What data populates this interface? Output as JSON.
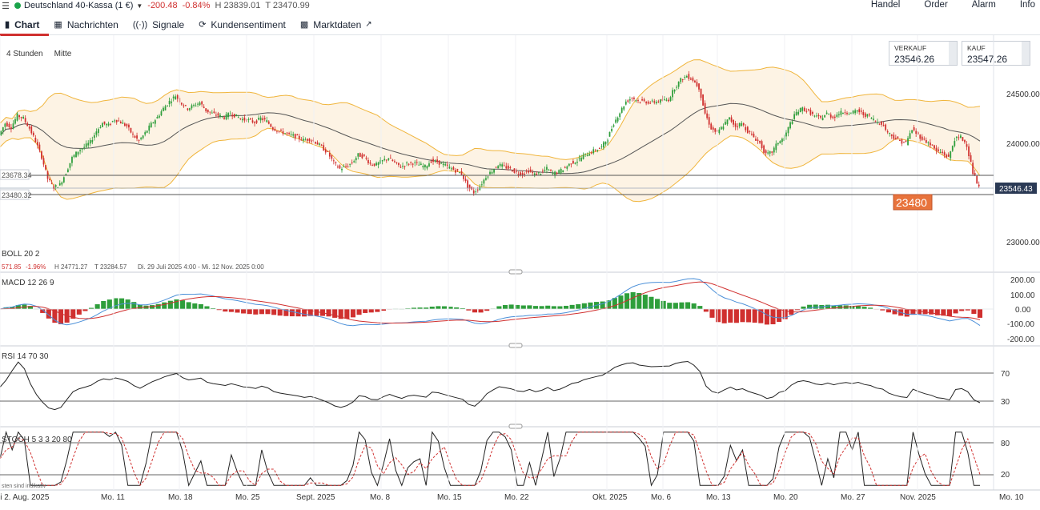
{
  "header": {
    "instrument": "Deutschland 40-Kassa (1 €)",
    "change": "-200.48",
    "change_pct": "-0.84%",
    "high": "H 23839.01",
    "low": "T 23470.99",
    "menu": [
      "Handel",
      "Order",
      "Alarm",
      "Info"
    ]
  },
  "tabs": [
    {
      "label": "Chart",
      "icon": "bar-chart-icon"
    },
    {
      "label": "Nachrichten",
      "icon": "newspaper-icon"
    },
    {
      "label": "Signale",
      "icon": "signal-icon"
    },
    {
      "label": "Kundensentiment",
      "icon": "sentiment-icon"
    },
    {
      "label": "Marktdaten",
      "icon": "external-link-icon"
    }
  ],
  "options": {
    "interval": "4 Stunden",
    "price_mode": "Mitte"
  },
  "quote": {
    "sell_label": "VERKAUF",
    "sell_value": "23546.26",
    "buy_label": "KAUF",
    "buy_value": "23547.26"
  },
  "price_panel": {
    "y_ticks": [
      "24500.00",
      "24000.00",
      "23000.00"
    ],
    "last_price": "23546.43",
    "line_labels": [
      "23678.34",
      "23480.32"
    ],
    "alert_level": "23480",
    "indicator": "BOLL  20  2",
    "summary": {
      "first": "571.85",
      "pct": "-1.96%",
      "high": "H 24771.27",
      "low": "T 23284.57",
      "range": "Di. 29 Juli 2025 4:00 - Mi. 12 Nov. 2025 0:00"
    }
  },
  "macd_panel": {
    "title": "MACD  12  26  9",
    "y_ticks": [
      "200.00",
      "100.00",
      "0.00",
      "-100.00",
      "-200.00"
    ]
  },
  "rsi_panel": {
    "title": "RSI  14  70  30",
    "y_ticks": [
      "70",
      "30"
    ]
  },
  "stoch_panel": {
    "title": "STOCH  5  3  3  20  80",
    "y_ticks": [
      "80",
      "20"
    ],
    "footnote": "sten sind indikativ"
  },
  "x_axis": [
    "li 2. Aug. 2025",
    "Mo. 11",
    "Mo. 18",
    "Mo. 25",
    "Sept. 2025",
    "Mo. 8",
    "Mo. 15",
    "Mo. 22",
    "Okt. 2025",
    "Mo. 6",
    "Mo. 13",
    "Mo. 20",
    "Mo. 27",
    "Nov. 2025",
    "Mo. 10"
  ],
  "chart_data": {
    "type": "line",
    "title": "",
    "xlabel": "",
    "ylabel": "",
    "candlestick_close": [
      24080,
      24200,
      24160,
      24280,
      24250,
      24150,
      24020,
      23860,
      23640,
      23550,
      23580,
      23700,
      23850,
      23920,
      23960,
      24010,
      24120,
      24200,
      24180,
      24240,
      24210,
      24170,
      24080,
      24020,
      24100,
      24190,
      24260,
      24350,
      24420,
      24480,
      24400,
      24350,
      24380,
      24410,
      24330,
      24300,
      24280,
      24260,
      24300,
      24270,
      24240,
      24230,
      24210,
      24250,
      24220,
      24150,
      24120,
      24100,
      24080,
      24060,
      24030,
      24040,
      24010,
      23960,
      23900,
      23800,
      23740,
      23760,
      23800,
      23880,
      23860,
      23790,
      23780,
      23820,
      23850,
      23800,
      23760,
      23790,
      23800,
      23780,
      23760,
      23820,
      23810,
      23780,
      23750,
      23720,
      23690,
      23560,
      23500,
      23560,
      23660,
      23720,
      23780,
      23760,
      23740,
      23700,
      23690,
      23720,
      23680,
      23700,
      23740,
      23690,
      23710,
      23750,
      23800,
      23820,
      23870,
      23900,
      23930,
      23960,
      24050,
      24200,
      24310,
      24420,
      24460,
      24430,
      24420,
      24410,
      24420,
      24430,
      24440,
      24560,
      24640,
      24680,
      24640,
      24560,
      24300,
      24150,
      24100,
      24180,
      24250,
      24170,
      24200,
      24120,
      24060,
      24000,
      23880,
      23910,
      24010,
      24050,
      24200,
      24310,
      24350,
      24320,
      24270,
      24250,
      24300,
      24260,
      24300,
      24320,
      24300,
      24330,
      24290,
      24270,
      24220,
      24200,
      24110,
      24060,
      24020,
      24000,
      24140,
      24080,
      24030,
      23990,
      23920,
      23900,
      23850,
      24040,
      24060,
      23980,
      23700,
      23546
    ],
    "bollinger": {
      "period": 20,
      "std_dev": 2
    },
    "price_range": [
      22850,
      24900
    ],
    "ylim": [
      23000,
      24500
    ],
    "macd": {
      "fast": 12,
      "slow": 26,
      "signal": 9,
      "ylim": [
        -200,
        200
      ]
    },
    "rsi": {
      "period": 14,
      "upper": 70,
      "lower": 30
    },
    "stochastic": {
      "k": 5,
      "d": 3,
      "smooth": 3,
      "lower": 20,
      "upper": 80
    }
  }
}
